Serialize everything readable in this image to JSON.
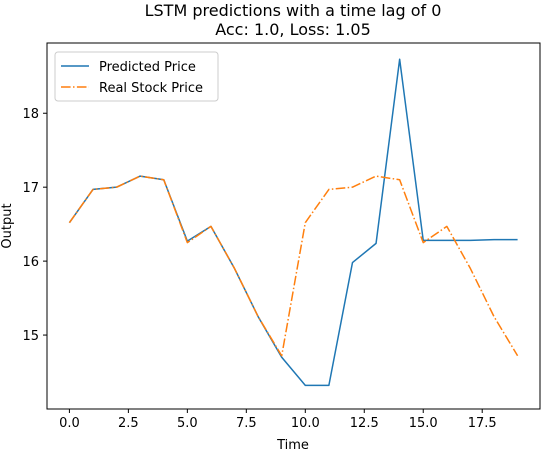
{
  "chart_data": {
    "type": "line",
    "title": "LSTM predictions with a time lag of 0",
    "subtitle": "Acc: 1.0, Loss: 1.05",
    "xlabel": "Time",
    "ylabel": "Output",
    "xlim": [
      -0.95,
      19.95
    ],
    "ylim": [
      14.0,
      18.95
    ],
    "xticks": [
      0.0,
      2.5,
      5.0,
      7.5,
      10.0,
      12.5,
      15.0,
      17.5
    ],
    "xtick_labels": [
      "0.0",
      "2.5",
      "5.0",
      "7.5",
      "10.0",
      "12.5",
      "15.0",
      "17.5"
    ],
    "yticks": [
      15,
      16,
      17,
      18
    ],
    "ytick_labels": [
      "15",
      "16",
      "17",
      "18"
    ],
    "grid": false,
    "legend_position": "top-left",
    "x": [
      0,
      1,
      2,
      3,
      4,
      5,
      6,
      7,
      8,
      9,
      10,
      11,
      12,
      13,
      14,
      15,
      16,
      17,
      18,
      19
    ],
    "series": [
      {
        "name": "Predicted Price",
        "color": "#1f77b4",
        "style": "solid",
        "values": [
          16.52,
          16.97,
          17.0,
          17.15,
          17.1,
          16.27,
          16.47,
          15.9,
          15.25,
          14.7,
          14.32,
          14.32,
          15.98,
          16.24,
          18.73,
          16.28,
          16.28,
          16.28,
          16.29,
          16.29
        ]
      },
      {
        "name": "Real Stock Price",
        "color": "#ff7f0e",
        "style": "dashdot",
        "values": [
          16.52,
          16.97,
          17.0,
          17.15,
          17.1,
          16.25,
          16.47,
          15.9,
          15.25,
          14.72,
          16.52,
          16.97,
          17.0,
          17.15,
          17.1,
          16.25,
          16.47,
          15.9,
          15.25,
          14.72
        ]
      }
    ]
  }
}
